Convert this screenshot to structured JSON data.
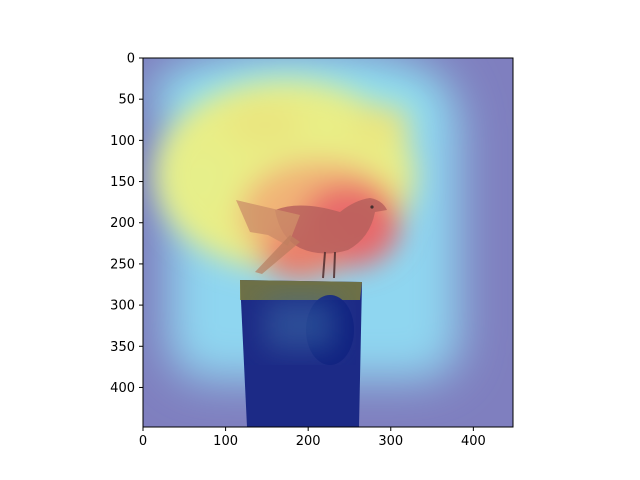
{
  "chart_data": {
    "type": "heatmap",
    "title": "",
    "xlabel": "",
    "ylabel": "",
    "xlim": [
      0,
      448
    ],
    "ylim": [
      448,
      0
    ],
    "x_ticks": [
      0,
      100,
      200,
      300,
      400
    ],
    "y_ticks": [
      0,
      50,
      100,
      150,
      200,
      250,
      300,
      350,
      400
    ],
    "x_tick_labels": [
      "0",
      "100",
      "200",
      "300",
      "400"
    ],
    "y_tick_labels": [
      "0",
      "50",
      "100",
      "150",
      "200",
      "250",
      "300",
      "350",
      "400"
    ],
    "colormap": "jet",
    "overlay_alpha": 0.5,
    "background_image": "seagull-on-wooden-post",
    "grid": false,
    "colors": {
      "background": "#ffffff",
      "axes": "#000000",
      "low": "#7f7fbf",
      "high": "#e8696a"
    },
    "hotspots": [
      {
        "x": 240,
        "y": 215,
        "intensity": 1.0
      },
      {
        "x": 270,
        "y": 175,
        "intensity": 0.95
      },
      {
        "x": 200,
        "y": 240,
        "intensity": 0.85
      },
      {
        "x": 100,
        "y": 80,
        "intensity": 0.55
      },
      {
        "x": 160,
        "y": 90,
        "intensity": 0.6
      },
      {
        "x": 300,
        "y": 80,
        "intensity": 0.55
      },
      {
        "x": 360,
        "y": 110,
        "intensity": 0.45
      },
      {
        "x": 80,
        "y": 175,
        "intensity": 0.55
      },
      {
        "x": 350,
        "y": 300,
        "intensity": 0.4
      },
      {
        "x": 80,
        "y": 360,
        "intensity": 0.4
      },
      {
        "x": 270,
        "y": 330,
        "intensity": 0.1
      }
    ]
  }
}
